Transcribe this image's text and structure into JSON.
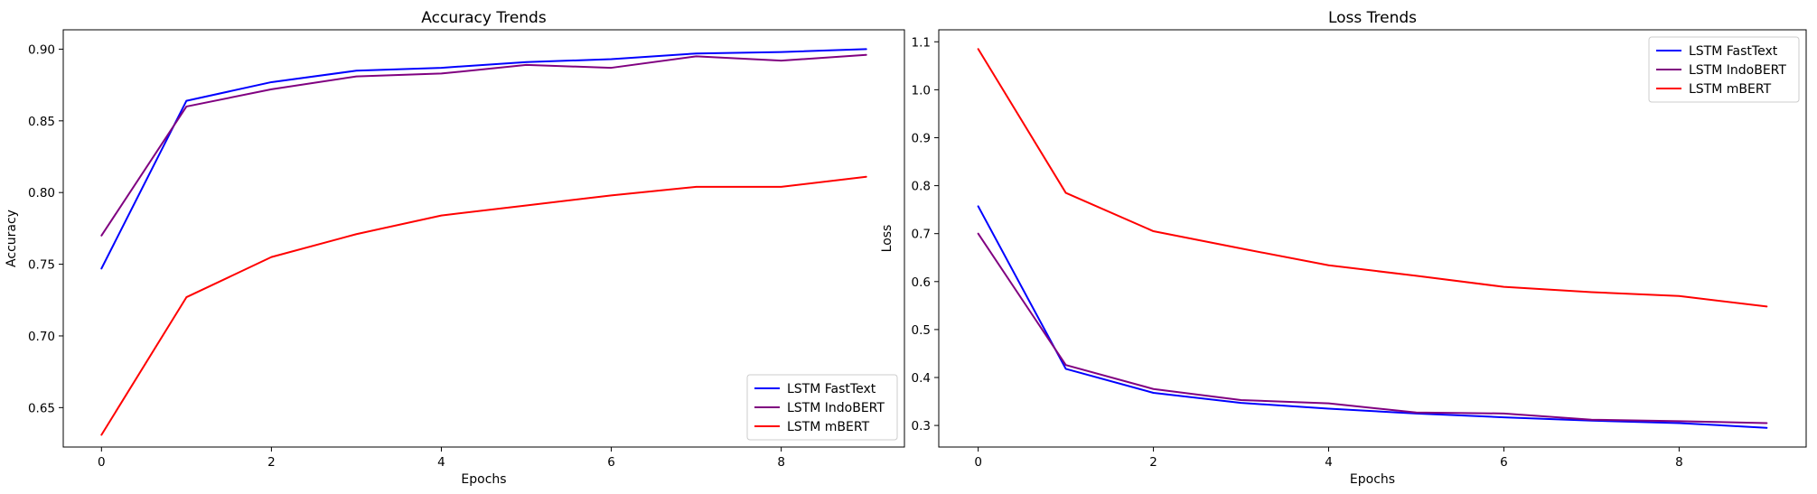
{
  "chart_data": [
    {
      "type": "line",
      "title": "Accuracy Trends",
      "xlabel": "Epochs",
      "ylabel": "Accuracy",
      "xlim": [
        -0.45,
        9.45
      ],
      "ylim": [
        0.6225,
        0.9135
      ],
      "xticks": [
        0,
        2,
        4,
        6,
        8
      ],
      "yticks": [
        0.65,
        0.7,
        0.75,
        0.8,
        0.85,
        0.9
      ],
      "legend_position": "lower right",
      "x": [
        0,
        1,
        2,
        3,
        4,
        5,
        6,
        7,
        8,
        9
      ],
      "series": [
        {
          "name": "LSTM FastText",
          "color": "#0000ff",
          "values": [
            0.747,
            0.864,
            0.877,
            0.885,
            0.887,
            0.891,
            0.893,
            0.897,
            0.898,
            0.9
          ]
        },
        {
          "name": "LSTM IndoBERT",
          "color": "#800080",
          "values": [
            0.77,
            0.86,
            0.872,
            0.881,
            0.883,
            0.889,
            0.887,
            0.895,
            0.892,
            0.896
          ]
        },
        {
          "name": "LSTM mBERT",
          "color": "#ff0000",
          "values": [
            0.631,
            0.727,
            0.755,
            0.771,
            0.784,
            0.791,
            0.798,
            0.804,
            0.804,
            0.811
          ]
        }
      ]
    },
    {
      "type": "line",
      "title": "Loss Trends",
      "xlabel": "Epochs",
      "ylabel": "Loss",
      "xlim": [
        -0.45,
        9.45
      ],
      "ylim": [
        0.255,
        1.125
      ],
      "xticks": [
        0,
        2,
        4,
        6,
        8
      ],
      "yticks": [
        0.3,
        0.4,
        0.5,
        0.6,
        0.7,
        0.8,
        0.9,
        1.0,
        1.1
      ],
      "legend_position": "upper right",
      "x": [
        0,
        1,
        2,
        3,
        4,
        5,
        6,
        7,
        8,
        9
      ],
      "series": [
        {
          "name": "LSTM FastText",
          "color": "#0000ff",
          "values": [
            0.757,
            0.418,
            0.368,
            0.347,
            0.335,
            0.325,
            0.317,
            0.31,
            0.305,
            0.295
          ]
        },
        {
          "name": "LSTM IndoBERT",
          "color": "#800080",
          "values": [
            0.7,
            0.426,
            0.376,
            0.353,
            0.346,
            0.327,
            0.325,
            0.312,
            0.309,
            0.305
          ]
        },
        {
          "name": "LSTM mBERT",
          "color": "#ff0000",
          "values": [
            1.085,
            0.785,
            0.705,
            0.669,
            0.634,
            0.612,
            0.589,
            0.578,
            0.57,
            0.548
          ]
        }
      ]
    }
  ]
}
